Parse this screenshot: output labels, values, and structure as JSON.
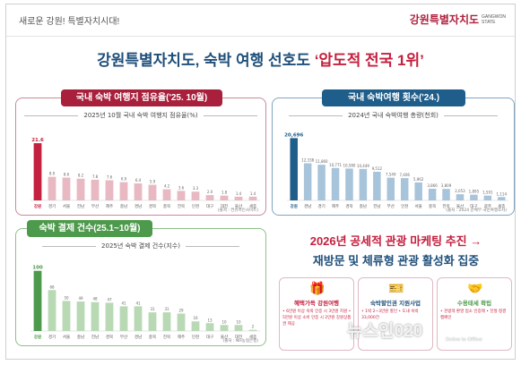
{
  "header": {
    "slogan": "새로운 강원! 특별자치시대!",
    "logo_text": "강원특별자치도",
    "logo_sub_1": "GANGWON",
    "logo_sub_2": "STATE"
  },
  "headline": {
    "prefix": "강원특별자치도, 숙박 여행 선호도 ",
    "highlight": "‘압도적 전국 1위’"
  },
  "panels": {
    "share": {
      "title": "국내 숙박 여행지 점유율('25. 10월)",
      "subtitle": "2025년 10월 국내 숙박 여행지 점유율(%)",
      "source": "(출처 : 컨슈머인사이트)"
    },
    "count": {
      "title": "국내 숙박여행 횟수('24.)",
      "subtitle": "2024년 국내 숙박여행 총량(천회)",
      "source": "(출처 : 2024 문체부 국민여행조사)"
    },
    "pay": {
      "title": "숙박 결제 건수(25.1~10월)",
      "subtitle": "2025년 숙박 결제 건수(지수)",
      "source": "(출처 : NH농협은행)"
    }
  },
  "chart_data": [
    {
      "type": "bar",
      "title": "2025년 10월 국내 숙박 여행지 점유율(%)",
      "categories": [
        "강원",
        "경기",
        "서울",
        "전남",
        "부산",
        "제주",
        "충남",
        "경남",
        "경북",
        "충북",
        "전북",
        "인천",
        "대구",
        "대전",
        "울산",
        "세종"
      ],
      "values": [
        21.6,
        8.9,
        8.6,
        8.2,
        7.8,
        7.6,
        6.9,
        6.4,
        5.9,
        4.2,
        3.6,
        3.3,
        2.0,
        1.8,
        1.4,
        1.4
      ],
      "ylim": [
        0,
        25
      ]
    },
    {
      "type": "bar",
      "title": "2024년 국내 숙박여행 총량(천회)",
      "categories": [
        "강원",
        "경남",
        "경기",
        "제주",
        "경북",
        "충남",
        "전남",
        "부산",
        "인천",
        "서울",
        "충북",
        "전북",
        "울산",
        "대구",
        "광주",
        "세종"
      ],
      "values": [
        20696,
        12338,
        11860,
        10771,
        10580,
        10449,
        9512,
        7549,
        7406,
        5962,
        3866,
        3809,
        2053,
        1895,
        1591,
        1114
      ],
      "ylim": [
        0,
        22000
      ]
    },
    {
      "type": "bar",
      "title": "2025년 숙박 결제 건수(지수)",
      "categories": [
        "강원",
        "경기",
        "서울",
        "충남",
        "전남",
        "경북",
        "부산",
        "경남",
        "충북",
        "전북",
        "제주",
        "인천",
        "대구",
        "울산",
        "대전",
        "세종"
      ],
      "values": [
        100,
        68,
        50,
        49,
        48,
        47,
        41,
        41,
        31,
        31,
        29,
        16,
        13,
        10,
        10,
        2
      ],
      "ylim": [
        0,
        110
      ]
    }
  ],
  "promo": {
    "line1_red": "2026년 공세적 관광 마케팅 추진 →",
    "line2": "재방문 및 체류형 관광 활성화 집중",
    "cards": [
      {
        "icon": "🎁",
        "label": "혜택가득 강원여행",
        "text": "• 6만원 이상 숙박 인증 시 3만원 지원 • 5만원 이상 소비 인증 시 2만원 강원상품권 제공"
      },
      {
        "icon": "🎫",
        "label": "숙박할인권 지원사업",
        "text": "• 1박 2~3만원 할인 • 도내 숙박 33,000건"
      },
      {
        "icon": "🤝",
        "label": "수용태세 확립",
        "text": "• 관광객 환영 업소 인증제 • 친절·청결 캠페인"
      }
    ]
  },
  "watermark": {
    "text": "뉴스인020",
    "sub": "Online to Offline"
  },
  "colors": {
    "red": "#c4203f",
    "blue": "#1f4f7a",
    "green": "#4e9a4c"
  }
}
